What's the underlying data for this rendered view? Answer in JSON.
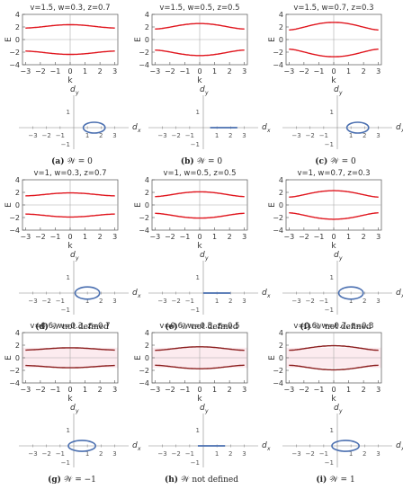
{
  "chart_data": [
    {
      "id": "a",
      "type": "line",
      "title": "v=1.5, w=0.3, z=0.7",
      "xlabel": "k",
      "ylabel": "E",
      "xlim": [
        -3.2,
        3.2
      ],
      "ylim": [
        -4,
        4
      ],
      "xticks": [
        -3,
        -2,
        -1,
        0,
        1,
        2,
        3
      ],
      "yticks": [
        -4,
        -2,
        0,
        2,
        4
      ],
      "v": 1.5,
      "w": 0.3,
      "z": 0.7,
      "branch_color": "#e0161e",
      "pink_band": false,
      "winding": {
        "dx_ticks": [
          -3,
          -2,
          -1,
          1,
          2,
          3
        ],
        "dy_ticks": [
          1,
          -1
        ],
        "center": [
          1.5,
          0
        ],
        "rx": 0.8,
        "ry": 0.3,
        "kind": "ellipse"
      },
      "caption_letter": "(a)",
      "caption_text": "𝒲 = 0"
    },
    {
      "id": "b",
      "type": "line",
      "title": "v=1.5, w=0.5, z=0.5",
      "xlabel": "k",
      "ylabel": "E",
      "xlim": [
        -3.2,
        3.2
      ],
      "ylim": [
        -4,
        4
      ],
      "xticks": [
        -3,
        -2,
        -1,
        0,
        1,
        2,
        3
      ],
      "yticks": [
        -4,
        -2,
        0,
        2,
        4
      ],
      "v": 1.5,
      "w": 0.5,
      "z": 0.5,
      "branch_color": "#e0161e",
      "pink_band": false,
      "winding": {
        "dx_ticks": [
          -3,
          -2,
          -1,
          1,
          2,
          3
        ],
        "dy_ticks": [
          1,
          -1
        ],
        "center": [
          1.5,
          0
        ],
        "rx": 1.0,
        "ry": 0,
        "kind": "segment"
      },
      "caption_letter": "(b)",
      "caption_text": "𝒲 = 0"
    },
    {
      "id": "c",
      "type": "line",
      "title": "v=1.5, w=0.7, z=0.3",
      "xlabel": "k",
      "ylabel": "E",
      "xlim": [
        -3.2,
        3.2
      ],
      "ylim": [
        -4,
        4
      ],
      "xticks": [
        -3,
        -2,
        -1,
        0,
        1,
        2,
        3
      ],
      "yticks": [
        -4,
        -2,
        0,
        2,
        4
      ],
      "v": 1.5,
      "w": 0.7,
      "z": 0.3,
      "branch_color": "#e0161e",
      "pink_band": false,
      "winding": {
        "dx_ticks": [
          -3,
          -2,
          -1,
          1,
          2,
          3
        ],
        "dy_ticks": [
          1,
          -1
        ],
        "center": [
          1.5,
          0
        ],
        "rx": 0.8,
        "ry": 0.3,
        "kind": "ellipse"
      },
      "caption_letter": "(c)",
      "caption_text": "𝒲 = 0"
    },
    {
      "id": "d",
      "type": "line",
      "title": "v=1, w=0.3, z=0.7",
      "xlabel": "k",
      "ylabel": "E",
      "xlim": [
        -3.2,
        3.2
      ],
      "ylim": [
        -4,
        4
      ],
      "xticks": [
        -3,
        -2,
        -1,
        0,
        1,
        2,
        3
      ],
      "yticks": [
        -4,
        -2,
        0,
        2,
        4
      ],
      "v": 1,
      "w": 0.3,
      "z": 0.7,
      "branch_color": "#e0161e",
      "pink_band": false,
      "winding": {
        "dx_ticks": [
          -3,
          -2,
          -1,
          1,
          2,
          3
        ],
        "dy_ticks": [
          1,
          -1
        ],
        "center": [
          1.0,
          0
        ],
        "rx": 0.9,
        "ry": 0.45,
        "kind": "ellipse"
      },
      "caption_letter": "(d)",
      "caption_text": "𝒲 not defined"
    },
    {
      "id": "e",
      "type": "line",
      "title": "v=1, w=0.5, z=0.5",
      "xlabel": "k",
      "ylabel": "E",
      "xlim": [
        -3.2,
        3.2
      ],
      "ylim": [
        -4,
        4
      ],
      "xticks": [
        -3,
        -2,
        -1,
        0,
        1,
        2,
        3
      ],
      "yticks": [
        -4,
        -2,
        0,
        2,
        4
      ],
      "v": 1,
      "w": 0.5,
      "z": 0.5,
      "branch_color": "#e0161e",
      "pink_band": false,
      "winding": {
        "dx_ticks": [
          -3,
          -2,
          -1,
          1,
          2,
          3
        ],
        "dy_ticks": [
          1,
          -1
        ],
        "center": [
          1.0,
          0
        ],
        "rx": 1.0,
        "ry": 0,
        "kind": "segment"
      },
      "caption_letter": "(e)",
      "caption_text": "𝒲 not defined"
    },
    {
      "id": "f",
      "type": "line",
      "title": "v=1, w=0.7, z=0.3",
      "xlabel": "k",
      "ylabel": "E",
      "xlim": [
        -3.2,
        3.2
      ],
      "ylim": [
        -4,
        4
      ],
      "xticks": [
        -3,
        -2,
        -1,
        0,
        1,
        2,
        3
      ],
      "yticks": [
        -4,
        -2,
        0,
        2,
        4
      ],
      "v": 1,
      "w": 0.7,
      "z": 0.3,
      "branch_color": "#e0161e",
      "pink_band": false,
      "winding": {
        "dx_ticks": [
          -3,
          -2,
          -1,
          1,
          2,
          3
        ],
        "dy_ticks": [
          1,
          -1
        ],
        "center": [
          1.0,
          0
        ],
        "rx": 0.9,
        "ry": 0.45,
        "kind": "ellipse"
      },
      "caption_letter": "(f)",
      "caption_text": "𝒲 not defined"
    },
    {
      "id": "g",
      "type": "line",
      "title": "v=0.6, w=0.3, z=0.7",
      "xlabel": "k",
      "ylabel": "E",
      "xlim": [
        -3.2,
        3.2
      ],
      "ylim": [
        -4,
        4
      ],
      "xticks": [
        -3,
        -2,
        -1,
        0,
        1,
        2,
        3
      ],
      "yticks": [
        -4,
        -2,
        0,
        2,
        4
      ],
      "v": 0.6,
      "w": 0.3,
      "z": 0.7,
      "branch_color": "#8a1c1c",
      "pink_band": true,
      "winding": {
        "dx_ticks": [
          -3,
          -2,
          -1,
          1,
          2,
          3
        ],
        "dy_ticks": [
          1,
          -1
        ],
        "center": [
          0.6,
          0
        ],
        "rx": 1.0,
        "ry": 0.4,
        "kind": "ellipse"
      },
      "caption_letter": "(g)",
      "caption_text": "𝒲 = −1"
    },
    {
      "id": "h",
      "type": "line",
      "title": "v=0.6, w=0.5, z=0.5",
      "xlabel": "k",
      "ylabel": "E",
      "xlim": [
        -3.2,
        3.2
      ],
      "ylim": [
        -4,
        4
      ],
      "xticks": [
        -3,
        -2,
        -1,
        0,
        1,
        2,
        3
      ],
      "yticks": [
        -4,
        -2,
        0,
        2,
        4
      ],
      "v": 0.6,
      "w": 0.5,
      "z": 0.5,
      "branch_color": "#8a1c1c",
      "pink_band": true,
      "winding": {
        "dx_ticks": [
          -3,
          -2,
          -1,
          1,
          2,
          3
        ],
        "dy_ticks": [
          1,
          -1
        ],
        "center": [
          0.6,
          0
        ],
        "rx": 1.0,
        "ry": 0,
        "kind": "segment"
      },
      "caption_letter": "(h)",
      "caption_text": "𝒲 not defined"
    },
    {
      "id": "i",
      "type": "line",
      "title": "v=0.6, w=0.7, z=0.3",
      "xlabel": "k",
      "ylabel": "E",
      "xlim": [
        -3.2,
        3.2
      ],
      "ylim": [
        -4,
        4
      ],
      "xticks": [
        -3,
        -2,
        -1,
        0,
        1,
        2,
        3
      ],
      "yticks": [
        -4,
        -2,
        0,
        2,
        4
      ],
      "v": 0.6,
      "w": 0.7,
      "z": 0.3,
      "branch_color": "#8a1c1c",
      "pink_band": true,
      "winding": {
        "dx_ticks": [
          -3,
          -2,
          -1,
          1,
          2,
          3
        ],
        "dy_ticks": [
          1,
          -1
        ],
        "center": [
          0.6,
          0
        ],
        "rx": 1.0,
        "ry": 0.4,
        "kind": "ellipse"
      },
      "caption_letter": "(i)",
      "caption_text": "𝒲 = 1"
    }
  ],
  "labels": {
    "dx": "d",
    "dx_sub": "x",
    "dy": "d",
    "dy_sub": "y"
  },
  "colors": {
    "axis": "#888888",
    "frame": "#555555",
    "winding": "#4a6fb0",
    "pink": "#f7c6d2",
    "red": "#e0161e",
    "dark_red": "#8a1c1c"
  }
}
